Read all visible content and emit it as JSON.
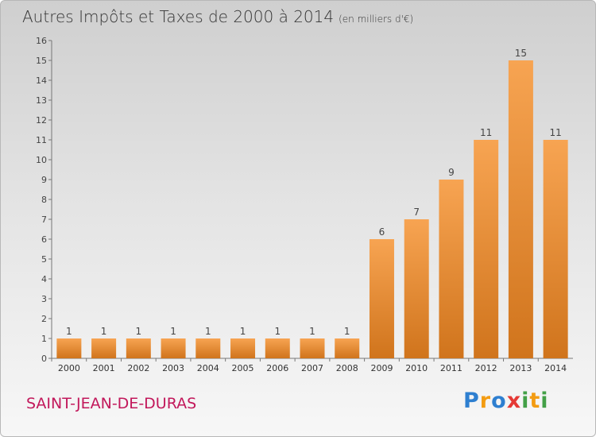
{
  "header": {
    "title": "Autres Impôts et Taxes de 2000 à 2014",
    "unit": "(en milliers d'€)"
  },
  "footer": {
    "commune": "SAINT-JEAN-DE-DURAS",
    "brand_letters": [
      "P",
      "r",
      "o",
      "x",
      "i",
      "t",
      "i"
    ],
    "brand_colors": [
      "#2e7fd0",
      "#f39c12",
      "#2e7fd0",
      "#e53935",
      "#43a047",
      "#f39c12",
      "#43a047"
    ]
  },
  "chart_data": {
    "type": "bar",
    "title": "Autres Impôts et Taxes de 2000 à 2014",
    "subtitle": "(en milliers d'€)",
    "categories": [
      "2000",
      "2001",
      "2002",
      "2003",
      "2004",
      "2005",
      "2006",
      "2007",
      "2008",
      "2009",
      "2010",
      "2011",
      "2012",
      "2013",
      "2014"
    ],
    "values": [
      1,
      1,
      1,
      1,
      1,
      1,
      1,
      1,
      1,
      6,
      7,
      9,
      11,
      15,
      11
    ],
    "ylim": [
      0,
      16
    ],
    "yticks": [
      0,
      1,
      2,
      3,
      4,
      5,
      6,
      7,
      8,
      9,
      10,
      11,
      12,
      13,
      14,
      15,
      16
    ],
    "grid": false,
    "bar_color_light": "#f7a452",
    "bar_color_dark": "#d0741c"
  }
}
